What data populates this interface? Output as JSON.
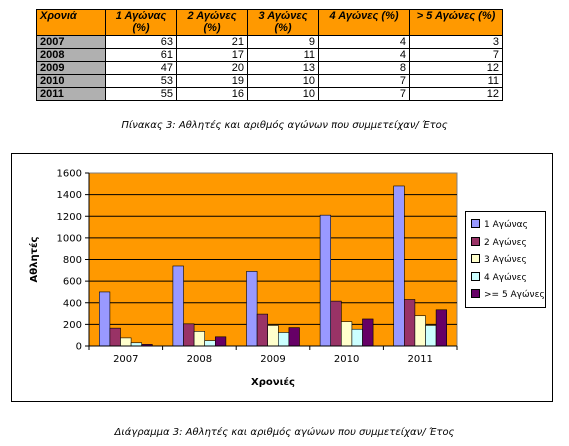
{
  "table": {
    "headers": [
      "Χρονιά",
      "1 Αγώνας (%)",
      "2 Αγώνες (%)",
      "3 Αγώνες (%)",
      "4 Αγώνες (%)",
      "> 5 Αγώνες (%)"
    ],
    "rows": [
      [
        "2007",
        "63",
        "21",
        "9",
        "4",
        "3"
      ],
      [
        "2008",
        "61",
        "17",
        "11",
        "4",
        "7"
      ],
      [
        "2009",
        "47",
        "20",
        "13",
        "8",
        "12"
      ],
      [
        "2010",
        "53",
        "19",
        "10",
        "7",
        "11"
      ],
      [
        "2011",
        "55",
        "16",
        "10",
        "7",
        "12"
      ]
    ],
    "header_color": "#ff9900",
    "year_cell_color": "#b0b0b0"
  },
  "table_caption": "Πίνακας 3: Αθλητές και αριθμός αγώνων που συμμετείχαν/ Έτος",
  "chart_caption": "Διάγραμμα 3: Αθλητές και αριθμός αγώνων που συμμετείχαν/ Έτος",
  "chart_data": {
    "type": "bar",
    "categories": [
      "2007",
      "2008",
      "2009",
      "2010",
      "2011"
    ],
    "series": [
      {
        "name": "1 Αγώνας",
        "color": "#9999ff",
        "values": [
          500,
          740,
          690,
          1210,
          1480
        ]
      },
      {
        "name": "2 Αγώνες",
        "color": "#993366",
        "values": [
          165,
          205,
          295,
          415,
          430
        ]
      },
      {
        "name": "3 Αγώνες",
        "color": "#ffffcc",
        "values": [
          75,
          135,
          190,
          225,
          280
        ]
      },
      {
        "name": "4 Αγώνες",
        "color": "#ccffff",
        "values": [
          30,
          50,
          125,
          155,
          190
        ]
      },
      {
        "name": ">= 5 Αγώνες",
        "color": "#660066",
        "values": [
          15,
          85,
          170,
          250,
          335
        ]
      }
    ],
    "title": "",
    "xlabel": "Χρονιές",
    "ylabel": "Αθλητές",
    "ylim": [
      0,
      1600
    ],
    "yticks": [
      "0",
      "200",
      "400",
      "600",
      "800",
      "1000",
      "1200",
      "1400",
      "1600"
    ],
    "plot_background": "#ff9900",
    "grid": true,
    "legend_position": "right"
  }
}
